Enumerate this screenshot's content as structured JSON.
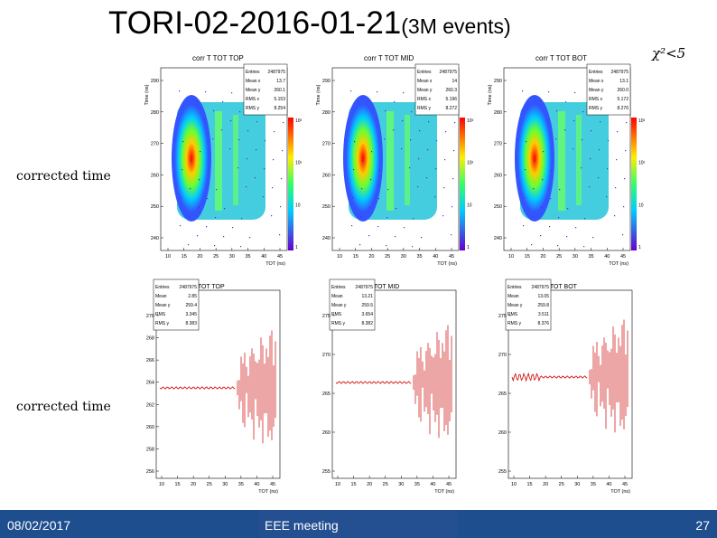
{
  "slide": {
    "title_main": "TORI-02-2016-01-21",
    "title_sub": "(3M events)",
    "chi_label": "χ²<5",
    "row1_label": "corrected time",
    "row2_label": "corrected time"
  },
  "footer": {
    "date": "08/02/2017",
    "center": "EEE meeting",
    "page": "27"
  },
  "colors": {
    "footer_bg": "#1f4e8f",
    "profile_red": "#cc0000",
    "palette_top": "#ff0000",
    "palette_bottom": "#6600cc"
  },
  "plots2d": [
    {
      "title": "corr T TOT TOP",
      "stats": [
        [
          "Entries",
          "2487975"
        ],
        [
          "Mean x",
          "13.7"
        ],
        [
          "Mean y",
          "260.1"
        ],
        [
          "RMS x",
          "5.153"
        ],
        [
          "RMS y",
          "8.254"
        ]
      ],
      "ylabel": "Time (ns)",
      "yticks": [
        "290",
        "280",
        "270",
        "260",
        "250",
        "240"
      ],
      "xticks": [
        "10",
        "15",
        "20",
        "25",
        "30",
        "35",
        "40",
        "45"
      ],
      "xlabel": "TOT (ns)",
      "zticks": [
        "10³",
        "10²",
        "10",
        "1"
      ]
    },
    {
      "title": "corr T TOT MID",
      "stats": [
        [
          "Entries",
          "2487975"
        ],
        [
          "Mean x",
          "14"
        ],
        [
          "Mean y",
          "260.3"
        ],
        [
          "RMS x",
          "5.196"
        ],
        [
          "RMS y",
          "8.272"
        ]
      ],
      "ylabel": "Time (ns)",
      "yticks": [
        "290",
        "280",
        "270",
        "260",
        "250",
        "240"
      ],
      "xticks": [
        "10",
        "15",
        "20",
        "25",
        "30",
        "35",
        "40",
        "45"
      ],
      "xlabel": "TOT (ns)",
      "zticks": [
        "10³",
        "10²",
        "10",
        "1"
      ]
    },
    {
      "title": "corr T TOT BOT",
      "stats": [
        [
          "Entries",
          "2487975"
        ],
        [
          "Mean x",
          "13.1"
        ],
        [
          "Mean y",
          "260.0"
        ],
        [
          "RMS x",
          "5.172"
        ],
        [
          "RMS y",
          "8.276"
        ]
      ],
      "ylabel": "Time (ns)",
      "yticks": [
        "290",
        "280",
        "270",
        "260",
        "250",
        "240"
      ],
      "xticks": [
        "10",
        "15",
        "20",
        "25",
        "30",
        "35",
        "40",
        "45"
      ],
      "xlabel": "TOT (ns)",
      "zticks": [
        "10³",
        "10²",
        "10",
        "1"
      ]
    }
  ],
  "profiles": [
    {
      "title": "corr T TOT TOP",
      "stats": [
        [
          "Entries",
          "2487975"
        ],
        [
          "Mean",
          "2.85"
        ],
        [
          "Mean y",
          "259.4"
        ],
        [
          "RMS",
          "3.345"
        ],
        [
          "RMS y",
          "8.383"
        ]
      ],
      "yticks": [
        "270",
        "268",
        "266",
        "264",
        "262",
        "260",
        "258",
        "256"
      ],
      "xticks": [
        "10",
        "15",
        "20",
        "25",
        "30",
        "35",
        "40",
        "45"
      ],
      "xlabel": "TOT (ns)"
    },
    {
      "title": "corr T TOT MID",
      "stats": [
        [
          "Entries",
          "2487975"
        ],
        [
          "Mean",
          "13.21"
        ],
        [
          "Mean y",
          "259.5"
        ],
        [
          "RMS",
          "3.654"
        ],
        [
          "RMS y",
          "8.382"
        ]
      ],
      "yticks": [
        "275",
        "270",
        "265",
        "260",
        "255"
      ],
      "xticks": [
        "10",
        "15",
        "20",
        "25",
        "30",
        "35",
        "40",
        "45"
      ],
      "xlabel": "TOT (ns)"
    },
    {
      "title": "corr T TOT BOT",
      "stats": [
        [
          "Entries",
          "2487975"
        ],
        [
          "Mean",
          "13.05"
        ],
        [
          "Mean y",
          "259.8"
        ],
        [
          "RMS",
          "3.511"
        ],
        [
          "RMS y",
          "8.376"
        ]
      ],
      "yticks": [
        "275",
        "270",
        "265",
        "260",
        "255"
      ],
      "xticks": [
        "10",
        "15",
        "20",
        "25",
        "30",
        "35",
        "40",
        "45"
      ],
      "xlabel": "TOT (ns)"
    }
  ]
}
